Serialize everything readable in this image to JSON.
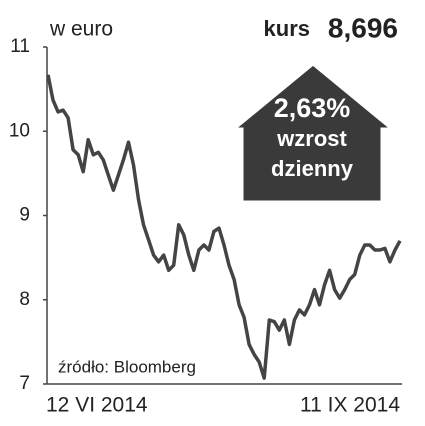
{
  "chart_data": {
    "type": "line",
    "unit_label": "w euro",
    "price_label": "kurs",
    "price": "8,696",
    "change": "2,63%",
    "change_text_1": "wzrost",
    "change_text_2": "dzienny",
    "source": "źródło: Bloomberg",
    "categories": [
      "12 VI 2014",
      null,
      null,
      null,
      null,
      null,
      null,
      null,
      null,
      null,
      null,
      null,
      null,
      null,
      null,
      null,
      null,
      null,
      null,
      null,
      null,
      null,
      null,
      null,
      null,
      null,
      null,
      null,
      null,
      null,
      null,
      null,
      null,
      null,
      null,
      null,
      null,
      null,
      null,
      null,
      null,
      null,
      null,
      null,
      null,
      null,
      null,
      null,
      null,
      null,
      null,
      null,
      null,
      null,
      null,
      null,
      null,
      null,
      null,
      null,
      null,
      null,
      null,
      null,
      null,
      null,
      null,
      null,
      null,
      null,
      "11 IX 2014"
    ],
    "series": [
      {
        "color": "#444444",
        "values": [
          10.67,
          10.37,
          10.23,
          10.25,
          10.16,
          9.78,
          9.72,
          9.52,
          9.9,
          9.72,
          9.75,
          9.66,
          9.48,
          9.3,
          9.48,
          9.66,
          9.87,
          9.6,
          9.19,
          8.89,
          8.71,
          8.53,
          8.45,
          8.53,
          8.35,
          8.41,
          8.89,
          8.77,
          8.53,
          8.35,
          8.59,
          8.65,
          8.59,
          8.81,
          8.85,
          8.65,
          8.41,
          8.24,
          7.94,
          7.79,
          7.47,
          7.35,
          7.26,
          7.07,
          7.76,
          7.74,
          7.64,
          7.76,
          7.47,
          7.76,
          7.88,
          7.82,
          7.94,
          8.12,
          7.94,
          8.18,
          8.35,
          8.12,
          8.02,
          8.12,
          8.24,
          8.3,
          8.53,
          8.65,
          8.65,
          8.59,
          8.59,
          8.61,
          8.45,
          8.59,
          8.7
        ]
      }
    ],
    "ylim": [
      7,
      11
    ],
    "yticks": [
      7,
      8,
      9,
      10,
      11
    ],
    "grid": false
  }
}
